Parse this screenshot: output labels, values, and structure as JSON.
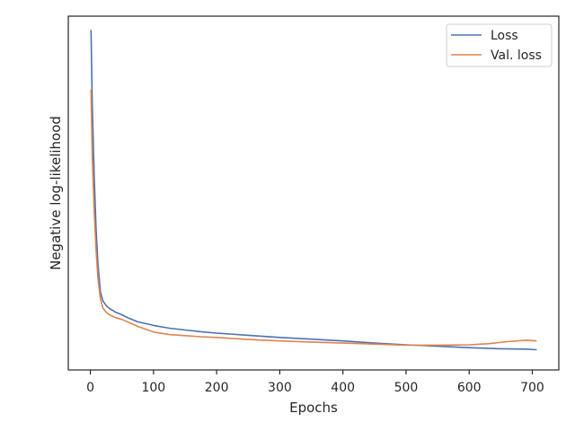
{
  "chart_data": {
    "type": "line",
    "title": "",
    "xlabel": "Epochs",
    "ylabel": "Negative log-likelihood",
    "xlim": [
      -35,
      742
    ],
    "ylim": [
      0,
      100
    ],
    "x_ticks": [
      0,
      100,
      200,
      300,
      400,
      500,
      600,
      700
    ],
    "y_ticks_shown": false,
    "grid": false,
    "legend_position": "top-right",
    "series": [
      {
        "name": "Loss",
        "color": "#4c72b0",
        "points": [
          [
            1,
            96.1
          ],
          [
            3,
            75
          ],
          [
            6,
            55
          ],
          [
            9,
            40
          ],
          [
            12,
            30
          ],
          [
            16,
            22
          ],
          [
            20,
            19.5
          ],
          [
            25,
            18.2
          ],
          [
            30,
            17.4
          ],
          [
            40,
            16.3
          ],
          [
            50,
            15.6
          ],
          [
            60,
            14.7
          ],
          [
            75,
            13.6
          ],
          [
            100,
            12.6
          ],
          [
            125,
            11.8
          ],
          [
            150,
            11.3
          ],
          [
            175,
            10.8
          ],
          [
            200,
            10.4
          ],
          [
            250,
            9.8
          ],
          [
            300,
            9.2
          ],
          [
            350,
            8.7
          ],
          [
            400,
            8.2
          ],
          [
            450,
            7.6
          ],
          [
            500,
            7.1
          ],
          [
            550,
            6.7
          ],
          [
            600,
            6.3
          ],
          [
            650,
            6.0
          ],
          [
            690,
            5.9
          ],
          [
            707,
            5.7
          ]
        ]
      },
      {
        "name": "Val. loss",
        "color": "#dd8452",
        "points": [
          [
            1,
            79.3
          ],
          [
            3,
            60
          ],
          [
            6,
            45
          ],
          [
            9,
            34
          ],
          [
            12,
            26
          ],
          [
            16,
            20
          ],
          [
            20,
            17.5
          ],
          [
            25,
            16.3
          ],
          [
            30,
            15.6
          ],
          [
            40,
            14.8
          ],
          [
            50,
            14.3
          ],
          [
            60,
            13.5
          ],
          [
            75,
            12.3
          ],
          [
            100,
            10.7
          ],
          [
            125,
            10
          ],
          [
            150,
            9.7
          ],
          [
            175,
            9.4
          ],
          [
            200,
            9.2
          ],
          [
            250,
            8.6
          ],
          [
            300,
            8.2
          ],
          [
            350,
            7.9
          ],
          [
            400,
            7.6
          ],
          [
            450,
            7.3
          ],
          [
            500,
            7.0
          ],
          [
            550,
            7.0
          ],
          [
            600,
            7.1
          ],
          [
            630,
            7.4
          ],
          [
            660,
            8.0
          ],
          [
            690,
            8.4
          ],
          [
            707,
            8.2
          ]
        ]
      }
    ]
  }
}
